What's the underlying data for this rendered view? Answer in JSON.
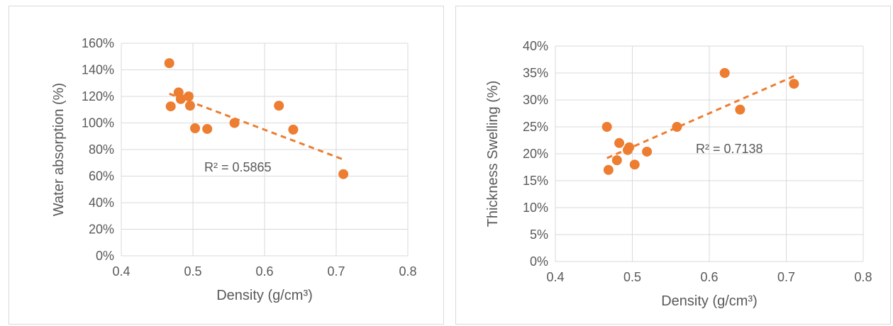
{
  "chart_data": [
    {
      "type": "scatter",
      "title": "",
      "xlabel": "Density (g/cm³)",
      "ylabel": "Water absorption (%)",
      "xlim": [
        0.4,
        0.8
      ],
      "ylim": [
        0,
        160
      ],
      "x_ticks": [
        0.4,
        0.5,
        0.6,
        0.7,
        0.8
      ],
      "x_tick_labels": [
        "0.4",
        "0.5",
        "0.6",
        "0.7",
        "0.8"
      ],
      "y_ticks": [
        0,
        20,
        40,
        60,
        80,
        100,
        120,
        140,
        160
      ],
      "y_tick_labels": [
        "0%",
        "20%",
        "40%",
        "60%",
        "80%",
        "100%",
        "120%",
        "140%",
        "160%"
      ],
      "grid": true,
      "legend": "none",
      "marker_color": "#ED7D31",
      "x": [
        0.467,
        0.469,
        0.48,
        0.483,
        0.494,
        0.496,
        0.503,
        0.52,
        0.558,
        0.62,
        0.64,
        0.71
      ],
      "y": [
        145,
        112.5,
        123,
        118,
        120,
        113,
        96,
        95.5,
        100,
        113,
        95,
        61.5
      ],
      "trendline": {
        "type": "linear",
        "color": "#ED7D31",
        "style": "dashed",
        "x": [
          0.467,
          0.71
        ],
        "y": [
          122,
          72.5
        ],
        "label": "R² = 0.5865"
      }
    },
    {
      "type": "scatter",
      "title": "",
      "xlabel": "Density (g/cm³)",
      "ylabel": "Thickness Swelling (%)",
      "xlim": [
        0.4,
        0.8
      ],
      "ylim": [
        0,
        40
      ],
      "x_ticks": [
        0.4,
        0.5,
        0.6,
        0.7,
        0.8
      ],
      "x_tick_labels": [
        "0.4",
        "0.5",
        "0.6",
        "0.7",
        "0.8"
      ],
      "y_ticks": [
        0,
        5,
        10,
        15,
        20,
        25,
        30,
        35,
        40
      ],
      "y_tick_labels": [
        "0%",
        "5%",
        "10%",
        "15%",
        "20%",
        "25%",
        "30%",
        "35%",
        "40%"
      ],
      "grid": true,
      "legend": "none",
      "marker_color": "#ED7D31",
      "x": [
        0.467,
        0.469,
        0.48,
        0.483,
        0.494,
        0.496,
        0.503,
        0.519,
        0.558,
        0.62,
        0.64,
        0.71
      ],
      "y": [
        25,
        17,
        18.8,
        22,
        20.7,
        21.2,
        18,
        20.4,
        25,
        35,
        28.2,
        33
      ],
      "trendline": {
        "type": "linear",
        "color": "#ED7D31",
        "style": "dashed",
        "x": [
          0.467,
          0.71
        ],
        "y": [
          19.2,
          34.4
        ],
        "label": "R² = 0.7138"
      }
    }
  ]
}
